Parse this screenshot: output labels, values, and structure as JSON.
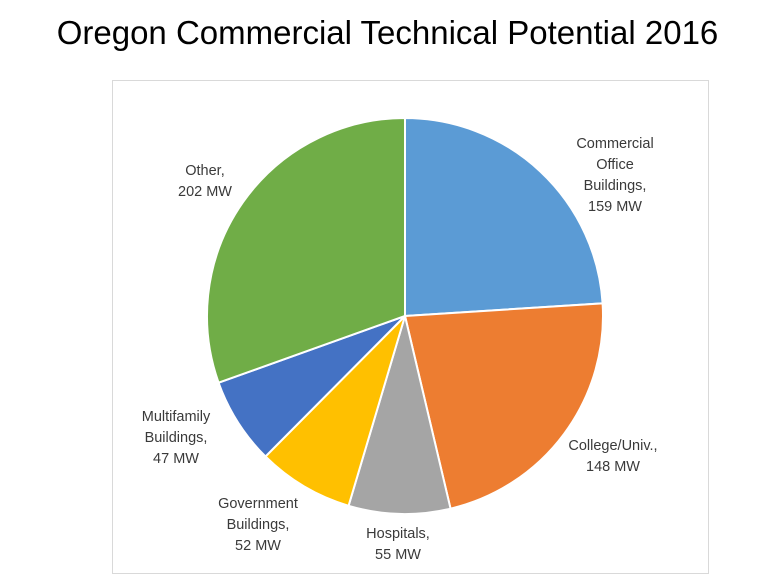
{
  "title": "Oregon Commercial Technical Potential 2016",
  "chart_data": {
    "type": "pie",
    "title": "Oregon Commercial Technical Potential 2016",
    "unit": "MW",
    "slices": [
      {
        "label_lines": [
          "Commercial",
          "Office",
          "Buildings,",
          "159 MW"
        ],
        "value": 159,
        "color": "#5b9bd5"
      },
      {
        "label_lines": [
          "College/Univ.,",
          "148 MW"
        ],
        "value": 148,
        "color": "#ed7d31"
      },
      {
        "label_lines": [
          "Hospitals,",
          "55 MW"
        ],
        "value": 55,
        "color": "#a5a5a5"
      },
      {
        "label_lines": [
          "Government",
          "Buildings,",
          "52 MW"
        ],
        "value": 52,
        "color": "#ffc000"
      },
      {
        "label_lines": [
          "Multifamily",
          "Buildings,",
          "47 MW"
        ],
        "value": 47,
        "color": "#4472c4"
      },
      {
        "label_lines": [
          "Other,",
          "202 MW"
        ],
        "value": 202,
        "color": "#70ad47"
      }
    ]
  }
}
